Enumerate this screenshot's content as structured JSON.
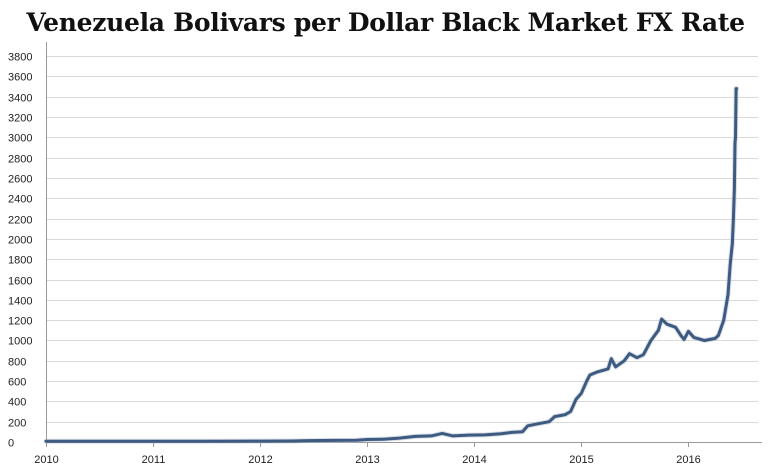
{
  "chart_data": {
    "type": "line",
    "title": "Venezuela Bolivars per Dollar Black Market FX Rate",
    "xlabel": "",
    "ylabel": "",
    "xlim": [
      2010.0,
      2016.65
    ],
    "ylim": [
      0,
      3900
    ],
    "y_ticks": [
      0,
      200,
      400,
      600,
      800,
      1000,
      1200,
      1400,
      1600,
      1800,
      2000,
      2200,
      2400,
      2600,
      2800,
      3000,
      3200,
      3400,
      3600,
      3800
    ],
    "x_ticks": [
      {
        "value": 2010,
        "label": "2010"
      },
      {
        "value": 2011,
        "label": "2011"
      },
      {
        "value": 2012,
        "label": "2012"
      },
      {
        "value": 2013,
        "label": "2013"
      },
      {
        "value": 2014,
        "label": "2014"
      },
      {
        "value": 2015,
        "label": "2015"
      },
      {
        "value": 2016,
        "label": "2016"
      }
    ],
    "grid": true,
    "legend": "none",
    "series": [
      {
        "color": "#3d5a80",
        "points": [
          [
            2010.0,
            7
          ],
          [
            2010.5,
            7
          ],
          [
            2011.0,
            8
          ],
          [
            2011.5,
            8
          ],
          [
            2012.0,
            9
          ],
          [
            2012.3,
            10
          ],
          [
            2012.45,
            14
          ],
          [
            2012.7,
            16
          ],
          [
            2012.9,
            18
          ],
          [
            2013.0,
            25
          ],
          [
            2013.15,
            28
          ],
          [
            2013.3,
            38
          ],
          [
            2013.45,
            55
          ],
          [
            2013.6,
            60
          ],
          [
            2013.7,
            85
          ],
          [
            2013.8,
            60
          ],
          [
            2013.95,
            68
          ],
          [
            2014.1,
            70
          ],
          [
            2014.25,
            82
          ],
          [
            2014.35,
            95
          ],
          [
            2014.45,
            100
          ],
          [
            2014.5,
            160
          ],
          [
            2014.6,
            180
          ],
          [
            2014.7,
            200
          ],
          [
            2014.75,
            250
          ],
          [
            2014.85,
            270
          ],
          [
            2014.9,
            300
          ],
          [
            2014.95,
            420
          ],
          [
            2015.0,
            480
          ],
          [
            2015.05,
            600
          ],
          [
            2015.08,
            660
          ],
          [
            2015.15,
            690
          ],
          [
            2015.25,
            720
          ],
          [
            2015.28,
            820
          ],
          [
            2015.32,
            740
          ],
          [
            2015.4,
            800
          ],
          [
            2015.45,
            870
          ],
          [
            2015.52,
            830
          ],
          [
            2015.58,
            860
          ],
          [
            2015.65,
            1000
          ],
          [
            2015.72,
            1100
          ],
          [
            2015.75,
            1210
          ],
          [
            2015.8,
            1160
          ],
          [
            2015.88,
            1130
          ],
          [
            2015.93,
            1050
          ],
          [
            2015.96,
            1010
          ],
          [
            2016.0,
            1090
          ],
          [
            2016.05,
            1030
          ],
          [
            2016.15,
            1000
          ],
          [
            2016.25,
            1020
          ],
          [
            2016.28,
            1050
          ],
          [
            2016.33,
            1200
          ],
          [
            2016.37,
            1450
          ],
          [
            2016.39,
            1750
          ],
          [
            2016.41,
            1950
          ],
          [
            2016.42,
            2200
          ],
          [
            2016.43,
            2500
          ],
          [
            2016.435,
            2950
          ],
          [
            2016.44,
            3000
          ],
          [
            2016.445,
            3480
          ],
          [
            2016.45,
            3480
          ]
        ]
      }
    ]
  }
}
